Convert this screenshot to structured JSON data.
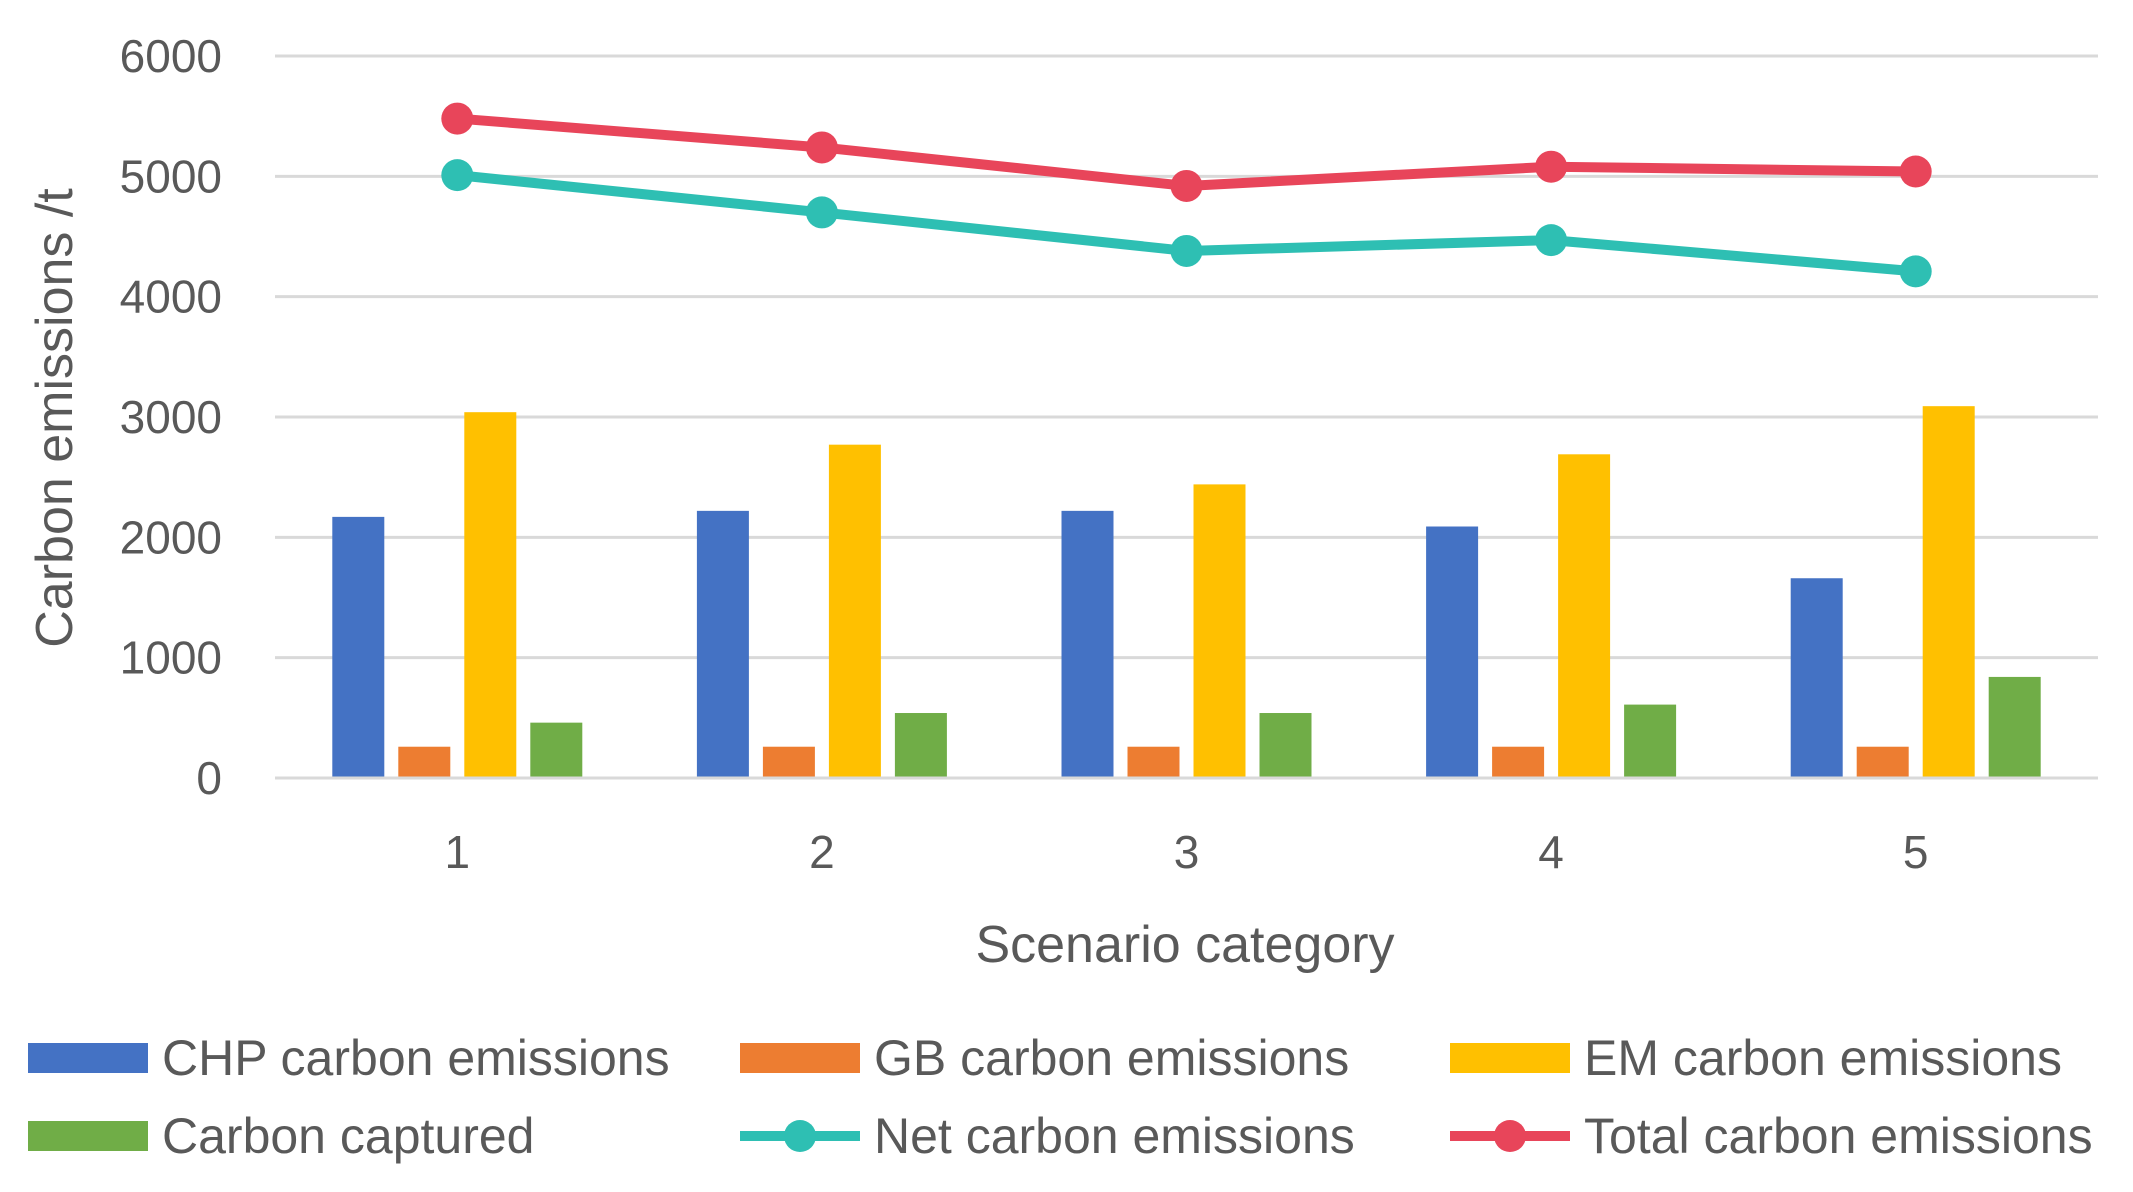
{
  "chart_data": {
    "type": "bar",
    "title": "",
    "xlabel": "Scenario category",
    "ylabel": "Carbon emissions /t",
    "categories": [
      "1",
      "2",
      "3",
      "4",
      "5"
    ],
    "ylim": [
      0,
      6000
    ],
    "yticks": [
      0,
      1000,
      2000,
      3000,
      4000,
      5000,
      6000
    ],
    "ytick_labels": [
      "0",
      "1000",
      "2000",
      "3000",
      "4000",
      "5000",
      "6000"
    ],
    "grid": true,
    "legend_position": "bottom",
    "bar_series": [
      {
        "name": "CHP carbon emissions",
        "color": "#4472C4",
        "values": [
          2170,
          2220,
          2220,
          2090,
          1660
        ]
      },
      {
        "name": "GB carbon emissions",
        "color": "#ED7D31",
        "values": [
          260,
          260,
          260,
          260,
          260
        ]
      },
      {
        "name": "EM carbon emissions",
        "color": "#FFC000",
        "values": [
          3040,
          2770,
          2440,
          2690,
          3090
        ]
      },
      {
        "name": "Carbon captured",
        "color": "#70AD47",
        "values": [
          460,
          540,
          540,
          610,
          840
        ]
      }
    ],
    "line_series": [
      {
        "name": "Net carbon emissions",
        "color": "#2EBFB3",
        "values": [
          5010,
          4700,
          4380,
          4470,
          4210
        ]
      },
      {
        "name": "Total carbon emissions",
        "color": "#E8455A",
        "values": [
          5480,
          5240,
          4920,
          5080,
          5040
        ]
      }
    ]
  }
}
